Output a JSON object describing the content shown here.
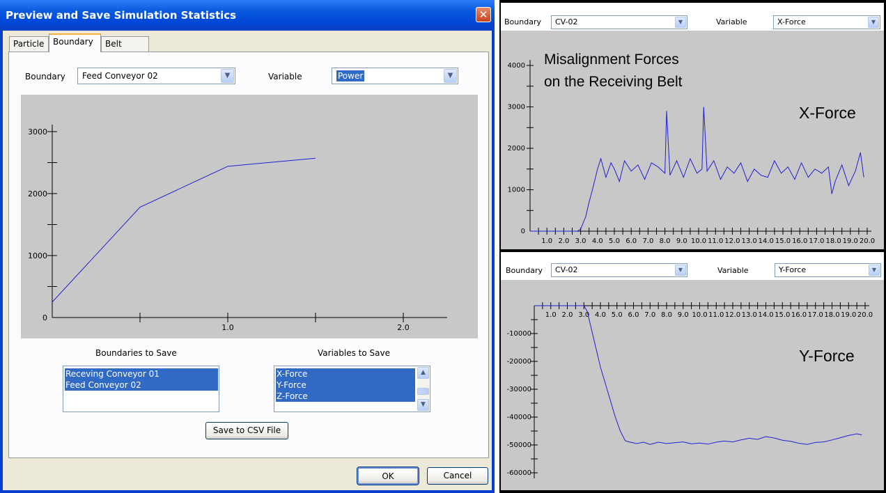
{
  "dialog": {
    "title": "Preview and Save Simulation Statistics",
    "close_glyph": "✕",
    "tabs": [
      {
        "label": "Particle",
        "active": false
      },
      {
        "label": "Boundary",
        "active": true
      },
      {
        "label": "Belt Wear",
        "active": false
      }
    ],
    "boundary_label": "Boundary",
    "boundary_value": "Feed Conveyor 02",
    "variable_label": "Variable",
    "variable_value": "Power",
    "boundaries_to_save_label": "Boundaries to Save",
    "boundaries_list": [
      "Receving Conveyor 01",
      "Feed Conveyor 02"
    ],
    "variables_to_save_label": "Variables to Save",
    "variables_list": [
      "X-Force",
      "Y-Force",
      "Z-Force"
    ],
    "save_csv_label": "Save to CSV File",
    "ok_label": "OK",
    "cancel_label": "Cancel",
    "chart_y_ticks": [
      "3000",
      "2000",
      "1000",
      "0"
    ],
    "chart_x_ticks": [
      "1.0",
      "2.0"
    ]
  },
  "top_panel": {
    "boundary_label": "Boundary",
    "boundary_value": "CV-02",
    "variable_label": "Variable",
    "variable_value": "X-Force",
    "annotation": "Misalignment Forces",
    "annotation2": "on the Receiving Belt",
    "series_label": "X-Force",
    "y_ticks": [
      "4000",
      "3000",
      "2000",
      "1000",
      "0"
    ],
    "x_ticks": [
      "1.0",
      "2.0",
      "3.0",
      "4.0",
      "5.0",
      "6.0",
      "7.0",
      "8.0",
      "9.0",
      "10.0",
      "11.0",
      "12.0",
      "13.0",
      "14.0",
      "15.0",
      "16.0",
      "17.0",
      "18.0",
      "19.0",
      "20.0"
    ]
  },
  "bottom_panel": {
    "boundary_label": "Boundary",
    "boundary_value": "CV-02",
    "variable_label": "Variable",
    "variable_value": "Y-Force",
    "series_label": "Y-Force",
    "y_ticks": [
      "-10000",
      "-20000",
      "-30000",
      "-40000",
      "-50000",
      "-60000"
    ],
    "x_ticks": [
      "1.0",
      "2.0",
      "3.0",
      "4.0",
      "5.0",
      "6.0",
      "7.0",
      "8.0",
      "9.0",
      "10.0",
      "11.0",
      "12.0",
      "13.0",
      "14.0",
      "15.0",
      "16.0",
      "17.0",
      "18.0",
      "19.0",
      "20.0"
    ]
  },
  "colors": {
    "line": "#1f1fd0",
    "plot_bg": "#c8c8c8",
    "selection": "#316ac5"
  },
  "chart_data": [
    {
      "type": "line",
      "xlim": [
        0,
        2.25
      ],
      "ylim": [
        0,
        3000
      ],
      "x": [
        0,
        0.5,
        1.0,
        1.5
      ],
      "values": [
        250,
        1780,
        2440,
        2570
      ],
      "xticks": [
        0.5,
        1.0,
        1.5,
        2.0
      ],
      "yticks": [
        500,
        1000,
        1500,
        2000,
        2500,
        3000
      ]
    },
    {
      "type": "line",
      "xlim": [
        0,
        20
      ],
      "ylim": [
        0,
        4000
      ],
      "x": [
        0,
        2.8,
        3.0,
        3.3,
        3.5,
        3.7,
        4.0,
        4.2,
        4.5,
        4.8,
        5.0,
        5.3,
        5.6,
        6.0,
        6.4,
        6.8,
        7.2,
        7.6,
        8.0,
        8.1,
        8.3,
        8.7,
        9.1,
        9.5,
        9.9,
        10.2,
        10.3,
        10.5,
        10.9,
        11.3,
        11.7,
        12.1,
        12.5,
        12.9,
        13.3,
        13.7,
        14.1,
        14.5,
        14.9,
        15.3,
        15.7,
        16.1,
        16.5,
        16.9,
        17.3,
        17.7,
        17.9,
        18.1,
        18.5,
        18.9,
        19.3,
        19.6,
        19.8
      ],
      "values": [
        0,
        0,
        50,
        350,
        700,
        1000,
        1500,
        1750,
        1300,
        1650,
        1500,
        1200,
        1700,
        1450,
        1600,
        1250,
        1650,
        1550,
        1400,
        2900,
        1350,
        1700,
        1300,
        1750,
        1400,
        1500,
        3000,
        1450,
        1700,
        1250,
        1550,
        1400,
        1650,
        1200,
        1500,
        1350,
        1300,
        1700,
        1400,
        1550,
        1250,
        1650,
        1300,
        1500,
        1400,
        1550,
        900,
        1200,
        1600,
        1100,
        1450,
        1900,
        1300
      ],
      "xticks": [
        1,
        2,
        3,
        4,
        5,
        6,
        7,
        8,
        9,
        10,
        11,
        12,
        13,
        14,
        15,
        16,
        17,
        18,
        19,
        20
      ],
      "yticks": [
        500,
        1000,
        1500,
        2000,
        2500,
        3000,
        3500,
        4000
      ]
    },
    {
      "type": "line",
      "xlim": [
        0,
        20
      ],
      "ylim": [
        -60000,
        0
      ],
      "x": [
        0,
        3.0,
        3.2,
        3.4,
        3.6,
        3.8,
        4.0,
        4.3,
        4.6,
        4.9,
        5.2,
        5.5,
        5.8,
        6.2,
        6.6,
        7.0,
        7.5,
        8.0,
        8.5,
        9.0,
        9.5,
        10.0,
        10.5,
        11.0,
        11.5,
        12.0,
        12.5,
        13.0,
        13.5,
        14.0,
        14.5,
        15.0,
        15.5,
        16.0,
        16.5,
        17.0,
        17.5,
        18.0,
        18.5,
        19.0,
        19.5,
        19.8
      ],
      "values": [
        0,
        0,
        -2000,
        -7000,
        -12000,
        -17000,
        -22000,
        -28000,
        -34000,
        -40000,
        -45000,
        -48500,
        -49000,
        -49500,
        -49000,
        -49800,
        -49000,
        -49500,
        -49200,
        -48900,
        -49600,
        -49300,
        -49700,
        -49000,
        -48600,
        -48900,
        -48200,
        -47600,
        -48000,
        -47000,
        -47500,
        -48300,
        -48700,
        -49400,
        -49800,
        -49100,
        -48900,
        -48200,
        -47400,
        -46600,
        -46000,
        -46400
      ],
      "xticks": [
        1,
        2,
        3,
        4,
        5,
        6,
        7,
        8,
        9,
        10,
        11,
        12,
        13,
        14,
        15,
        16,
        17,
        18,
        19,
        20
      ],
      "yticks": [
        -5000,
        -10000,
        -15000,
        -20000,
        -25000,
        -30000,
        -35000,
        -40000,
        -45000,
        -50000,
        -55000,
        -60000
      ]
    }
  ]
}
